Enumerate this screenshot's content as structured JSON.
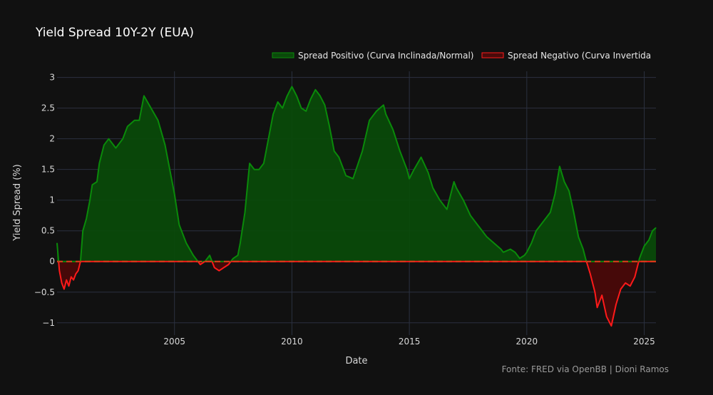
{
  "chart_data": {
    "type": "area",
    "title": "Yield Spread 10Y-2Y (EUA)",
    "xlabel": "Date",
    "ylabel": "Yield Spread (%)",
    "source_note": "Fonte: FRED via OpenBB | Dioni Ramos",
    "legend_position": "top-right",
    "grid": true,
    "xlim": [
      2000.0,
      2025.5
    ],
    "ylim": [
      -1.2,
      3.1
    ],
    "x_ticks": [
      {
        "value": 2005,
        "label": "2005"
      },
      {
        "value": 2010,
        "label": "2010"
      },
      {
        "value": 2015,
        "label": "2015"
      },
      {
        "value": 2020,
        "label": "2020"
      },
      {
        "value": 2025,
        "label": "2025"
      }
    ],
    "y_ticks": [
      {
        "value": 3,
        "label": "3"
      },
      {
        "value": 2.5,
        "label": "2.5"
      },
      {
        "value": 2,
        "label": "2"
      },
      {
        "value": 1.5,
        "label": "1.5"
      },
      {
        "value": 1,
        "label": "1"
      },
      {
        "value": 0.5,
        "label": "0.5"
      },
      {
        "value": 0,
        "label": "0"
      },
      {
        "value": -0.5,
        "label": "−0.5"
      },
      {
        "value": -1,
        "label": "−1"
      }
    ],
    "series": [
      {
        "name": "Spread Positivo (Curva Inclinada/Normal)",
        "color": "#0a8a0a",
        "fill": "#0a4a0a"
      },
      {
        "name": "Spread Negativo (Curva Invertida",
        "color": "#ff1a1a",
        "fill": "#4a0a0a"
      }
    ],
    "x": [
      2000.0,
      2000.1,
      2000.2,
      2000.3,
      2000.4,
      2000.5,
      2000.6,
      2000.7,
      2000.8,
      2000.9,
      2001.0,
      2001.1,
      2001.25,
      2001.4,
      2001.5,
      2001.7,
      2001.8,
      2002.0,
      2002.2,
      2002.5,
      2002.8,
      2003.0,
      2003.3,
      2003.5,
      2003.7,
      2004.0,
      2004.3,
      2004.6,
      2004.8,
      2005.0,
      2005.2,
      2005.5,
      2005.8,
      2006.0,
      2006.1,
      2006.3,
      2006.5,
      2006.7,
      2006.9,
      2007.1,
      2007.3,
      2007.5,
      2007.7,
      2007.8,
      2008.0,
      2008.2,
      2008.4,
      2008.6,
      2008.8,
      2009.0,
      2009.2,
      2009.4,
      2009.6,
      2009.8,
      2010.0,
      2010.2,
      2010.4,
      2010.6,
      2010.8,
      2011.0,
      2011.2,
      2011.4,
      2011.6,
      2011.8,
      2012.0,
      2012.3,
      2012.6,
      2013.0,
      2013.3,
      2013.6,
      2013.9,
      2014.0,
      2014.3,
      2014.6,
      2014.9,
      2015.0,
      2015.2,
      2015.5,
      2015.8,
      2016.0,
      2016.3,
      2016.6,
      2016.9,
      2017.0,
      2017.3,
      2017.6,
      2017.9,
      2018.0,
      2018.3,
      2018.6,
      2018.9,
      2019.0,
      2019.3,
      2019.5,
      2019.7,
      2019.9,
      2020.0,
      2020.2,
      2020.4,
      2020.6,
      2020.8,
      2021.0,
      2021.2,
      2021.4,
      2021.6,
      2021.8,
      2022.0,
      2022.2,
      2022.4,
      2022.5,
      2022.7,
      2022.9,
      2023.0,
      2023.2,
      2023.4,
      2023.6,
      2023.8,
      2024.0,
      2024.2,
      2024.4,
      2024.6,
      2024.8,
      2025.0,
      2025.2,
      2025.35,
      2025.5
    ],
    "values": [
      0.3,
      -0.15,
      -0.35,
      -0.45,
      -0.3,
      -0.4,
      -0.25,
      -0.3,
      -0.2,
      -0.15,
      0.0,
      0.5,
      0.7,
      1.0,
      1.25,
      1.3,
      1.6,
      1.9,
      2.0,
      1.85,
      2.0,
      2.2,
      2.3,
      2.3,
      2.7,
      2.5,
      2.3,
      1.9,
      1.5,
      1.1,
      0.6,
      0.3,
      0.1,
      0.0,
      -0.05,
      0.0,
      0.1,
      -0.1,
      -0.15,
      -0.1,
      -0.05,
      0.05,
      0.1,
      0.3,
      0.8,
      1.6,
      1.5,
      1.5,
      1.6,
      2.0,
      2.4,
      2.6,
      2.5,
      2.7,
      2.85,
      2.7,
      2.5,
      2.45,
      2.65,
      2.8,
      2.7,
      2.55,
      2.2,
      1.8,
      1.7,
      1.4,
      1.35,
      1.8,
      2.3,
      2.45,
      2.55,
      2.4,
      2.15,
      1.8,
      1.5,
      1.35,
      1.5,
      1.7,
      1.45,
      1.2,
      1.0,
      0.85,
      1.3,
      1.2,
      1.0,
      0.75,
      0.6,
      0.55,
      0.4,
      0.3,
      0.2,
      0.15,
      0.2,
      0.15,
      0.05,
      0.1,
      0.15,
      0.3,
      0.5,
      0.6,
      0.7,
      0.8,
      1.1,
      1.55,
      1.3,
      1.15,
      0.8,
      0.4,
      0.2,
      0.05,
      -0.2,
      -0.5,
      -0.75,
      -0.55,
      -0.9,
      -1.05,
      -0.7,
      -0.45,
      -0.35,
      -0.4,
      -0.25,
      0.05,
      0.25,
      0.35,
      0.5,
      0.55
    ]
  }
}
